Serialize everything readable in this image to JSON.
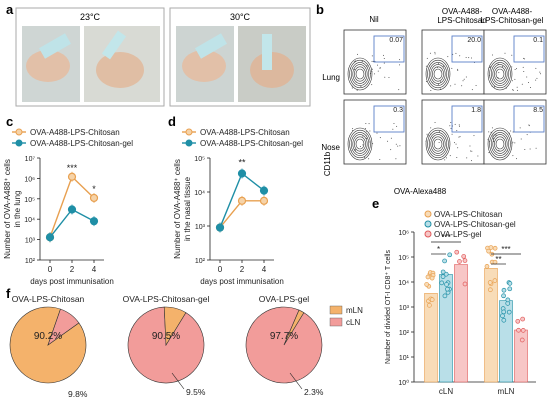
{
  "panel_letters": [
    "a",
    "b",
    "c",
    "d",
    "e",
    "f"
  ],
  "panel_a": {
    "temps": [
      "23°C",
      "30°C"
    ]
  },
  "panel_b": {
    "columns": [
      "Nil",
      "OVA-A488-\nLPS-Chitosan",
      "OVA-A488-\nLPS-Chitosan-gel"
    ],
    "rows": [
      "Lung",
      "Nose"
    ],
    "gate_values": [
      [
        "0.07",
        "20.0",
        "0.1"
      ],
      [
        "0.3",
        "1.8",
        "8.5"
      ]
    ],
    "ylabel": "CD11b",
    "xlabel": "OVA-Alexa488"
  },
  "colors": {
    "chitosan": "#e8a050",
    "gel": "#1f8fa6",
    "lps_gel": "#e05a5a",
    "pie_orange": "#f4b26b",
    "pie_pink": "#f29c9a"
  },
  "chart_data": [
    {
      "panel": "c",
      "type": "line",
      "ylabel": "Number of OVA-A488⁺ cells in the lung",
      "xlabel": "days post immunisation",
      "x": [
        0,
        2,
        4
      ],
      "log_y": true,
      "ylim": [
        100,
        10000000
      ],
      "y_ticks": [
        "10²",
        "10³",
        "10⁴",
        "10⁵",
        "10⁶",
        "10⁷"
      ],
      "significance": [
        "***",
        "*"
      ],
      "series": [
        {
          "name": "OVA-A488-LPS-Chitosan",
          "values": [
            1300,
            1200000,
            110000
          ]
        },
        {
          "name": "OVA-A488-LPS-Chitosan-gel",
          "values": [
            1300,
            30000,
            8000
          ]
        }
      ]
    },
    {
      "panel": "d",
      "type": "line",
      "ylabel": "Number of OVA-A488⁺ cells in the nasal tissue",
      "xlabel": "days post immunisation",
      "x": [
        0,
        2,
        4
      ],
      "log_y": true,
      "ylim": [
        100,
        100000
      ],
      "y_ticks": [
        "10²",
        "10³",
        "10⁴",
        "10⁵"
      ],
      "significance": [
        "**"
      ],
      "series": [
        {
          "name": "OVA-A488-LPS-Chitosan",
          "values": [
            900,
            5500,
            5500
          ]
        },
        {
          "name": "OVA-A488-LPS-Chitosan-gel",
          "values": [
            900,
            35000,
            11000
          ]
        }
      ]
    },
    {
      "panel": "e",
      "type": "bar",
      "ylabel": "Number of divided OT-I CD8⁺ T cells",
      "categories": [
        "cLN",
        "mLN"
      ],
      "log_y": true,
      "ylim": [
        1,
        1000000
      ],
      "y_ticks": [
        "10⁰",
        "10¹",
        "10²",
        "10³",
        "10⁴",
        "10⁵",
        "10⁶"
      ],
      "significance": [
        "***",
        "*",
        "***",
        "**"
      ],
      "series": [
        {
          "name": "OVA-LPS-Chitosan",
          "values": [
            3500,
            35000
          ]
        },
        {
          "name": "OVA-LPS-Chitosan-gel",
          "values": [
            20000,
            1800
          ]
        },
        {
          "name": "OVA-LPS-gel",
          "values": [
            50000,
            120
          ]
        }
      ]
    },
    {
      "panel": "f",
      "type": "pie",
      "legend": [
        "mLN",
        "cLN"
      ],
      "pies": [
        {
          "title": "OVA-LPS-Chitosan",
          "values": [
            90.2,
            9.8
          ],
          "labels": [
            "90.2%",
            "9.8%"
          ]
        },
        {
          "title": "OVA-LPS-Chitosan-gel",
          "values": [
            9.5,
            90.5
          ],
          "labels": [
            "9.5%",
            "90.5%"
          ]
        },
        {
          "title": "OVA-LPS-gel",
          "values": [
            2.3,
            97.7
          ],
          "labels": [
            "2.3%",
            "97.7%"
          ]
        }
      ]
    }
  ]
}
